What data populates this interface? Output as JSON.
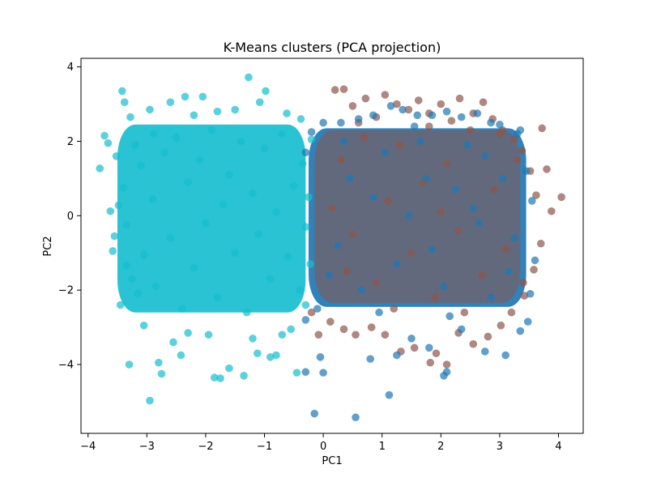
{
  "chart_data": {
    "type": "scatter",
    "title": "K-Means clusters (PCA projection)",
    "xlabel": "PC1",
    "ylabel": "PC2",
    "xlim": [
      -4.12,
      4.42
    ],
    "ylim": [
      -5.85,
      4.23
    ],
    "x_ticks": [
      -4,
      -3,
      -2,
      -1,
      0,
      1,
      2,
      3,
      4
    ],
    "y_ticks": [
      -4,
      -2,
      0,
      2,
      4
    ],
    "grid": false,
    "legend": "none",
    "marker_alpha": 0.7,
    "series": [
      {
        "cluster": 2,
        "color": "#17becf",
        "points": [
          [
            -3.8,
            1.27
          ],
          [
            -3.72,
            2.15
          ],
          [
            -3.66,
            1.95
          ],
          [
            -3.62,
            0.12
          ],
          [
            -3.58,
            -0.95
          ],
          [
            -3.55,
            -0.55
          ],
          [
            -3.52,
            1.6
          ],
          [
            -3.48,
            0.28
          ],
          [
            -3.45,
            -2.4
          ],
          [
            -3.42,
            3.35
          ],
          [
            -3.38,
            3.05
          ],
          [
            -3.35,
            -1.35
          ],
          [
            -3.3,
            -4.0
          ],
          [
            -3.28,
            2.65
          ],
          [
            -3.25,
            -1.7
          ],
          [
            -3.2,
            1.9
          ],
          [
            -3.15,
            -2.1
          ],
          [
            -3.05,
            -2.95
          ],
          [
            -2.95,
            2.85
          ],
          [
            -2.95,
            -4.97
          ],
          [
            -2.88,
            2.2
          ],
          [
            -2.8,
            -3.95
          ],
          [
            -2.75,
            -4.25
          ],
          [
            -2.6,
            3.05
          ],
          [
            -2.55,
            -3.4
          ],
          [
            -2.42,
            -3.75
          ],
          [
            -2.35,
            3.2
          ],
          [
            -2.3,
            -3.15
          ],
          [
            -2.2,
            2.7
          ],
          [
            -2.05,
            3.2
          ],
          [
            -1.95,
            -3.2
          ],
          [
            -1.85,
            -4.35
          ],
          [
            -1.8,
            2.8
          ],
          [
            -1.75,
            -4.37
          ],
          [
            -1.6,
            -4.1
          ],
          [
            -1.5,
            2.85
          ],
          [
            -1.35,
            -4.3
          ],
          [
            -1.27,
            3.72
          ],
          [
            -1.2,
            -3.3
          ],
          [
            -1.12,
            -3.7
          ],
          [
            -1.08,
            3.05
          ],
          [
            -0.98,
            3.35
          ],
          [
            -0.9,
            -3.8
          ],
          [
            -0.8,
            -3.75
          ],
          [
            -0.7,
            -3.2
          ],
          [
            -0.62,
            2.75
          ],
          [
            -0.55,
            -3.05
          ],
          [
            -0.45,
            -4.22
          ],
          [
            -0.38,
            2.6
          ],
          [
            -0.3,
            -2.4
          ],
          [
            -3.4,
            0.75
          ],
          [
            -3.35,
            -0.25
          ],
          [
            -3.1,
            1.35
          ],
          [
            -3.05,
            -1.05
          ],
          [
            -2.9,
            0.45
          ],
          [
            -2.85,
            -1.9
          ],
          [
            -2.7,
            1.7
          ],
          [
            -2.6,
            -0.6
          ],
          [
            -2.5,
            2.1
          ],
          [
            -2.4,
            -2.5
          ],
          [
            -2.3,
            0.9
          ],
          [
            -2.2,
            -1.4
          ],
          [
            -2.1,
            1.5
          ],
          [
            -2.0,
            -0.2
          ],
          [
            -1.9,
            2.3
          ],
          [
            -1.8,
            -2.2
          ],
          [
            -1.7,
            0.3
          ],
          [
            -1.6,
            1.1
          ],
          [
            -1.5,
            -1.0
          ],
          [
            -1.4,
            2.0
          ],
          [
            -1.3,
            -2.6
          ],
          [
            -1.2,
            0.6
          ],
          [
            -1.1,
            -0.5
          ],
          [
            -1.0,
            1.8
          ],
          [
            -0.9,
            -1.7
          ],
          [
            -0.8,
            0.1
          ],
          [
            -0.7,
            2.2
          ],
          [
            -0.6,
            -1.1
          ],
          [
            -0.5,
            0.8
          ],
          [
            -0.4,
            -2.0
          ],
          [
            -0.35,
            1.4
          ],
          [
            -0.3,
            -0.3
          ],
          [
            -0.25,
            0.5
          ],
          [
            -0.22,
            -1.3
          ],
          [
            -0.2,
            2.05
          ]
        ]
      },
      {
        "cluster": 1,
        "color": "#8c564b",
        "points": [
          [
            0.2,
            3.38
          ],
          [
            0.35,
            3.4
          ],
          [
            0.5,
            2.95
          ],
          [
            0.72,
            3.15
          ],
          [
            0.9,
            2.65
          ],
          [
            1.05,
            3.25
          ],
          [
            1.25,
            3.0
          ],
          [
            1.45,
            2.85
          ],
          [
            1.62,
            3.1
          ],
          [
            1.8,
            2.75
          ],
          [
            2.0,
            3.0
          ],
          [
            2.18,
            2.55
          ],
          [
            2.32,
            3.15
          ],
          [
            2.55,
            2.75
          ],
          [
            2.72,
            3.05
          ],
          [
            2.88,
            2.6
          ],
          [
            3.05,
            2.3
          ],
          [
            3.25,
            2.05
          ],
          [
            3.38,
            1.75
          ],
          [
            3.52,
            1.2
          ],
          [
            3.62,
            0.55
          ],
          [
            3.72,
            2.35
          ],
          [
            3.8,
            1.25
          ],
          [
            3.88,
            0.12
          ],
          [
            4.05,
            0.5
          ],
          [
            3.7,
            -0.75
          ],
          [
            3.58,
            -1.45
          ],
          [
            3.42,
            -2.15
          ],
          [
            3.2,
            -2.6
          ],
          [
            3.02,
            -2.95
          ],
          [
            2.8,
            -3.25
          ],
          [
            2.55,
            -3.45
          ],
          [
            2.3,
            -3.15
          ],
          [
            2.1,
            -4.0
          ],
          [
            1.92,
            -3.7
          ],
          [
            1.82,
            -3.95
          ],
          [
            1.55,
            -3.55
          ],
          [
            1.32,
            -3.65
          ],
          [
            1.05,
            -3.2
          ],
          [
            0.82,
            -3.0
          ],
          [
            0.55,
            -3.2
          ],
          [
            0.35,
            -3.05
          ],
          [
            0.12,
            -2.85
          ],
          [
            -0.08,
            -3.2
          ],
          [
            -0.2,
            -2.6
          ],
          [
            0.3,
            1.5
          ],
          [
            0.5,
            -0.5
          ],
          [
            0.7,
            2.1
          ],
          [
            0.9,
            -1.8
          ],
          [
            1.1,
            0.4
          ],
          [
            1.3,
            1.9
          ],
          [
            1.5,
            -1.0
          ],
          [
            1.7,
            0.9
          ],
          [
            1.9,
            -2.2
          ],
          [
            2.1,
            1.4
          ],
          [
            2.3,
            -0.4
          ],
          [
            2.5,
            2.3
          ],
          [
            2.7,
            -1.6
          ],
          [
            2.9,
            0.7
          ],
          [
            3.1,
            -0.9
          ],
          [
            3.3,
            1.5
          ],
          [
            0.15,
            0.2
          ],
          [
            0.6,
            2.5
          ],
          [
            1.2,
            -2.5
          ],
          [
            1.8,
            2.4
          ],
          [
            2.4,
            -2.6
          ],
          [
            3.0,
            2.2
          ],
          [
            3.4,
            -1.8
          ],
          [
            0.4,
            -1.5
          ],
          [
            2.0,
            0.1
          ]
        ]
      },
      {
        "cluster": 0,
        "color": "#1f77b4",
        "points": [
          [
            0.0,
            -4.22
          ],
          [
            -0.05,
            -3.8
          ],
          [
            -0.3,
            -4.2
          ],
          [
            -0.15,
            -5.32
          ],
          [
            0.55,
            -5.42
          ],
          [
            1.12,
            -4.82
          ],
          [
            0.8,
            -3.85
          ],
          [
            1.25,
            -3.75
          ],
          [
            1.5,
            -3.3
          ],
          [
            1.8,
            -3.55
          ],
          [
            2.05,
            -4.3
          ],
          [
            2.1,
            -4.2
          ],
          [
            2.35,
            -3.05
          ],
          [
            2.75,
            -3.65
          ],
          [
            3.1,
            -3.75
          ],
          [
            3.35,
            -3.1
          ],
          [
            3.48,
            -2.85
          ],
          [
            3.52,
            -2.1
          ],
          [
            3.6,
            -1.2
          ],
          [
            3.55,
            0.4
          ],
          [
            3.45,
            1.2
          ],
          [
            3.35,
            2.3
          ],
          [
            3.3,
            2.2
          ],
          [
            3.0,
            2.45
          ],
          [
            2.85,
            2.5
          ],
          [
            2.62,
            2.75
          ],
          [
            2.35,
            2.65
          ],
          [
            2.1,
            2.8
          ],
          [
            1.85,
            2.7
          ],
          [
            1.6,
            2.7
          ],
          [
            1.35,
            2.85
          ],
          [
            1.15,
            2.95
          ],
          [
            0.85,
            2.7
          ],
          [
            0.6,
            2.6
          ],
          [
            0.3,
            2.5
          ],
          [
            0.0,
            2.5
          ],
          [
            -0.2,
            2.25
          ],
          [
            -0.3,
            1.7
          ],
          [
            -0.3,
            -2.8
          ],
          [
            -0.1,
            -2.5
          ],
          [
            0.25,
            -0.8
          ],
          [
            0.45,
            1.0
          ],
          [
            0.65,
            -2.0
          ],
          [
            0.85,
            0.5
          ],
          [
            1.05,
            1.7
          ],
          [
            1.25,
            -1.3
          ],
          [
            1.45,
            0.0
          ],
          [
            1.65,
            2.0
          ],
          [
            1.85,
            -0.9
          ],
          [
            2.05,
            -1.9
          ],
          [
            2.25,
            0.7
          ],
          [
            2.45,
            1.9
          ],
          [
            2.65,
            -0.2
          ],
          [
            2.85,
            -2.2
          ],
          [
            3.05,
            1.0
          ],
          [
            3.25,
            -0.6
          ],
          [
            0.35,
            2.0
          ],
          [
            0.95,
            -2.6
          ],
          [
            1.55,
            2.4
          ],
          [
            2.15,
            -2.7
          ],
          [
            2.75,
            1.6
          ],
          [
            3.15,
            -1.5
          ],
          [
            0.1,
            -1.6
          ],
          [
            1.75,
            1.0
          ],
          [
            2.55,
            0.2
          ]
        ]
      }
    ]
  }
}
